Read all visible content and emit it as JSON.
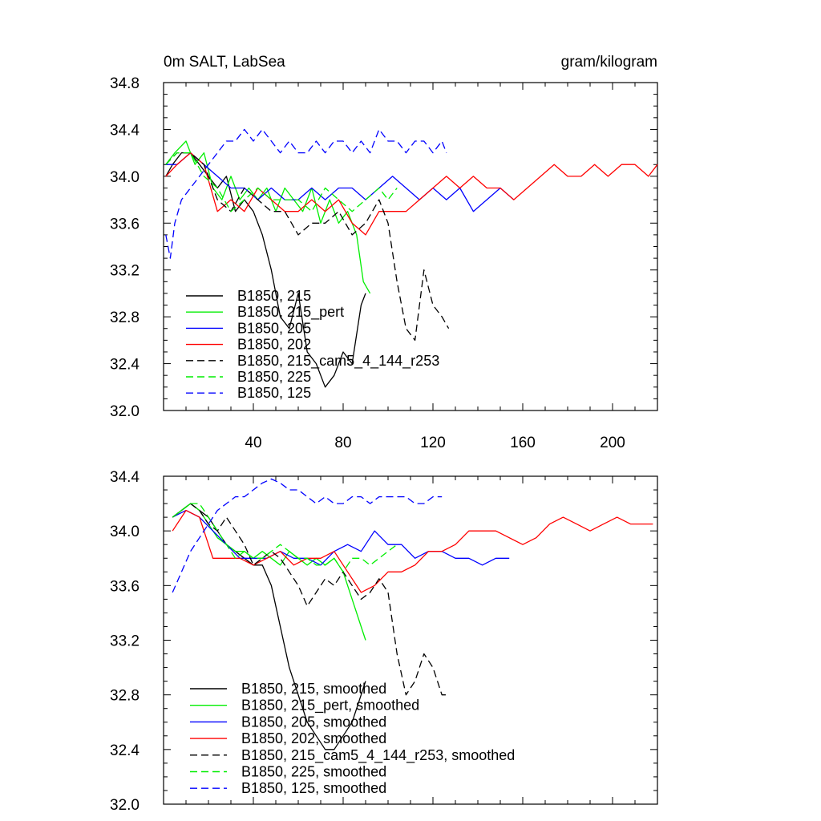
{
  "chart_data": [
    {
      "type": "line",
      "title_left": "0m SALT, LabSea",
      "title_right": "gram/kilogram",
      "xlim": [
        0,
        220
      ],
      "ylim": [
        32.0,
        34.8
      ],
      "yticks": [
        32.0,
        32.4,
        32.8,
        33.2,
        33.6,
        34.0,
        34.4,
        34.8
      ],
      "ytick_labels": [
        "32.0",
        "32.4",
        "32.8",
        "33.2",
        "33.6",
        "34.0",
        "34.4",
        "34.8"
      ],
      "xticks": [
        40,
        80,
        120,
        160,
        200
      ],
      "xtick_labels": [
        "40",
        "80",
        "120",
        "160",
        "200"
      ],
      "legend": [
        "B1850, 215",
        "B1850, 215_pert",
        "B1850, 205",
        "B1850, 202",
        "B1850, 215_cam5_4_144_r253",
        "B1850, 225",
        "B1850, 125"
      ],
      "series": [
        {
          "name": "B1850, 215",
          "color": "#000000",
          "dash": "solid",
          "x": [
            1,
            4,
            8,
            12,
            16,
            20,
            24,
            28,
            32,
            36,
            40,
            44,
            48,
            52,
            56,
            60,
            64,
            68,
            72,
            76,
            80,
            84,
            88,
            90
          ],
          "y": [
            34.0,
            34.1,
            34.2,
            34.2,
            34.1,
            34.0,
            33.9,
            34.0,
            33.7,
            33.8,
            33.7,
            33.5,
            33.2,
            32.8,
            32.7,
            33.0,
            32.5,
            32.4,
            32.2,
            32.3,
            32.5,
            32.4,
            32.9,
            33.0
          ]
        },
        {
          "name": "B1850, 215_pert",
          "color": "#00ee00",
          "dash": "solid",
          "x": [
            1,
            5,
            10,
            14,
            18,
            22,
            26,
            30,
            34,
            38,
            42,
            46,
            50,
            54,
            58,
            62,
            66,
            70,
            74,
            78,
            82,
            86,
            89,
            92
          ],
          "y": [
            34.1,
            34.2,
            34.3,
            34.1,
            34.2,
            33.9,
            33.8,
            34.0,
            33.8,
            33.9,
            33.8,
            33.9,
            33.7,
            33.9,
            33.8,
            33.7,
            33.9,
            33.6,
            33.8,
            33.6,
            33.7,
            33.5,
            33.1,
            33.0
          ]
        },
        {
          "name": "B1850, 205",
          "color": "#0000ff",
          "dash": "solid",
          "x": [
            1,
            6,
            12,
            18,
            24,
            30,
            36,
            42,
            48,
            54,
            60,
            66,
            72,
            78,
            84,
            90,
            96,
            102,
            108,
            114,
            120,
            126,
            132,
            138,
            144,
            150,
            156
          ],
          "y": [
            34.1,
            34.1,
            34.2,
            34.1,
            34.0,
            33.9,
            33.9,
            33.8,
            33.9,
            33.8,
            33.8,
            33.9,
            33.8,
            33.9,
            33.9,
            33.8,
            33.9,
            34.0,
            33.9,
            33.8,
            33.9,
            33.8,
            33.9,
            33.7,
            33.8,
            33.9,
            33.8
          ]
        },
        {
          "name": "B1850, 202",
          "color": "#ff0000",
          "dash": "solid",
          "x": [
            1,
            6,
            12,
            18,
            24,
            30,
            36,
            42,
            48,
            54,
            60,
            66,
            72,
            78,
            84,
            90,
            96,
            102,
            108,
            114,
            120,
            126,
            132,
            138,
            144,
            150,
            156,
            162,
            168,
            174,
            180,
            186,
            192,
            198,
            204,
            210,
            216,
            220
          ],
          "y": [
            34.0,
            34.1,
            34.2,
            34.1,
            33.7,
            33.8,
            33.7,
            33.9,
            33.8,
            33.7,
            33.7,
            33.8,
            33.7,
            33.8,
            33.6,
            33.5,
            33.7,
            33.7,
            33.7,
            33.8,
            33.9,
            34.0,
            33.9,
            34.0,
            33.9,
            33.9,
            33.8,
            33.9,
            34.0,
            34.1,
            34.0,
            34.0,
            34.1,
            34.0,
            34.1,
            34.1,
            34.0,
            34.1
          ]
        },
        {
          "name": "B1850, 215_cam5_4_144_r253",
          "color": "#000000",
          "dash": "dashed",
          "x": [
            1,
            6,
            12,
            18,
            24,
            30,
            36,
            42,
            48,
            54,
            60,
            66,
            72,
            78,
            84,
            90,
            96,
            100,
            104,
            108,
            112,
            116,
            120,
            124,
            127
          ],
          "y": [
            34.1,
            34.2,
            34.2,
            34.1,
            33.8,
            33.7,
            33.9,
            33.8,
            33.7,
            33.7,
            33.5,
            33.6,
            33.6,
            33.7,
            33.5,
            33.6,
            33.8,
            33.6,
            33.1,
            32.7,
            32.6,
            33.2,
            32.9,
            32.8,
            32.7
          ]
        },
        {
          "name": "B1850, 225",
          "color": "#00ee00",
          "dash": "dashed",
          "x": [
            1,
            6,
            12,
            18,
            24,
            30,
            36,
            42,
            48,
            54,
            60,
            66,
            72,
            78,
            84,
            90,
            96,
            100,
            104
          ],
          "y": [
            34.1,
            34.2,
            34.2,
            34.0,
            33.9,
            33.7,
            33.8,
            33.9,
            33.8,
            33.8,
            33.8,
            33.7,
            33.9,
            33.8,
            33.7,
            33.8,
            33.9,
            33.8,
            33.9
          ]
        },
        {
          "name": "B1850, 125",
          "color": "#0000ff",
          "dash": "dashed",
          "x": [
            1,
            3,
            5,
            8,
            12,
            16,
            20,
            24,
            28,
            32,
            36,
            40,
            44,
            48,
            52,
            56,
            60,
            64,
            68,
            72,
            76,
            80,
            84,
            88,
            92,
            96,
            100,
            104,
            108,
            112,
            116,
            120,
            124,
            126
          ],
          "y": [
            33.5,
            33.3,
            33.6,
            33.8,
            33.9,
            34.0,
            34.1,
            34.2,
            34.3,
            34.3,
            34.4,
            34.3,
            34.4,
            34.3,
            34.2,
            34.3,
            34.2,
            34.2,
            34.3,
            34.2,
            34.3,
            34.3,
            34.2,
            34.3,
            34.2,
            34.4,
            34.3,
            34.3,
            34.2,
            34.3,
            34.3,
            34.2,
            34.3,
            34.2
          ]
        }
      ]
    },
    {
      "type": "line",
      "xlim": [
        0,
        220
      ],
      "ylim": [
        32.0,
        34.4
      ],
      "yticks": [
        32.0,
        32.4,
        32.8,
        33.2,
        33.6,
        34.0,
        34.4
      ],
      "ytick_labels": [
        "32.0",
        "32.4",
        "32.8",
        "33.2",
        "33.6",
        "34.0",
        "34.4"
      ],
      "xticks": [
        40,
        80,
        120,
        160,
        200
      ],
      "legend": [
        "B1850, 215, smoothed",
        "B1850, 215_pert, smoothed",
        "B1850, 205, smoothed",
        "B1850, 202, smoothed",
        "B1850, 215_cam5_4_144_r253, smoothed",
        "B1850, 225, smoothed",
        "B1850, 125, smoothed"
      ],
      "series": [
        {
          "name": "B1850, 215, smoothed",
          "color": "#000000",
          "dash": "solid",
          "x": [
            4,
            8,
            12,
            16,
            20,
            24,
            28,
            32,
            36,
            40,
            44,
            48,
            52,
            56,
            60,
            64,
            68,
            72,
            76,
            80,
            84,
            88,
            90
          ],
          "y": [
            34.1,
            34.15,
            34.2,
            34.15,
            34.1,
            34.0,
            33.9,
            33.85,
            33.8,
            33.75,
            33.75,
            33.6,
            33.3,
            33.0,
            32.8,
            32.6,
            32.5,
            32.4,
            32.4,
            32.5,
            32.6,
            32.8,
            32.9
          ]
        },
        {
          "name": "B1850, 215_pert, smoothed",
          "color": "#00ee00",
          "dash": "solid",
          "x": [
            4,
            8,
            12,
            16,
            20,
            24,
            28,
            32,
            36,
            40,
            44,
            48,
            52,
            56,
            60,
            64,
            68,
            72,
            76,
            80,
            84,
            88,
            90
          ],
          "y": [
            34.1,
            34.15,
            34.2,
            34.15,
            34.05,
            33.95,
            33.9,
            33.85,
            33.85,
            33.8,
            33.85,
            33.8,
            33.75,
            33.85,
            33.8,
            33.75,
            33.8,
            33.75,
            33.8,
            33.7,
            33.5,
            33.3,
            33.2
          ]
        },
        {
          "name": "B1850, 205, smoothed",
          "color": "#0000ff",
          "dash": "solid",
          "x": [
            4,
            10,
            16,
            22,
            28,
            34,
            40,
            46,
            52,
            58,
            64,
            70,
            76,
            82,
            88,
            94,
            100,
            106,
            112,
            118,
            124,
            130,
            136,
            142,
            148,
            154
          ],
          "y": [
            34.1,
            34.15,
            34.1,
            34.0,
            33.9,
            33.8,
            33.8,
            33.8,
            33.85,
            33.8,
            33.8,
            33.75,
            33.85,
            33.9,
            33.85,
            34.0,
            33.9,
            33.9,
            33.8,
            33.85,
            33.85,
            33.8,
            33.8,
            33.75,
            33.8,
            33.8
          ]
        },
        {
          "name": "B1850, 202, smoothed",
          "color": "#ff0000",
          "dash": "solid",
          "x": [
            4,
            10,
            16,
            22,
            28,
            34,
            40,
            46,
            52,
            58,
            64,
            70,
            76,
            82,
            88,
            94,
            100,
            106,
            112,
            118,
            124,
            130,
            136,
            142,
            148,
            154,
            160,
            166,
            172,
            178,
            184,
            190,
            196,
            202,
            208,
            214,
            218
          ],
          "y": [
            34.0,
            34.15,
            34.1,
            33.8,
            33.8,
            33.8,
            33.75,
            33.8,
            33.85,
            33.75,
            33.8,
            33.8,
            33.85,
            33.7,
            33.55,
            33.6,
            33.7,
            33.7,
            33.75,
            33.85,
            33.85,
            33.9,
            34.0,
            34.0,
            34.0,
            33.95,
            33.9,
            33.95,
            34.05,
            34.1,
            34.05,
            34.0,
            34.05,
            34.1,
            34.05,
            34.05,
            34.05
          ]
        },
        {
          "name": "B1850, 215_cam5_4_144_r253, smoothed",
          "color": "#000000",
          "dash": "dashed",
          "x": [
            4,
            8,
            12,
            16,
            20,
            24,
            28,
            32,
            36,
            40,
            44,
            48,
            52,
            56,
            60,
            64,
            68,
            72,
            76,
            80,
            84,
            88,
            92,
            96,
            100,
            104,
            108,
            112,
            116,
            120,
            124,
            126
          ],
          "y": [
            34.1,
            34.15,
            34.2,
            34.15,
            34.05,
            34.0,
            34.1,
            34.0,
            33.9,
            33.75,
            33.8,
            33.85,
            33.8,
            33.7,
            33.6,
            33.45,
            33.55,
            33.65,
            33.6,
            33.7,
            33.6,
            33.5,
            33.55,
            33.65,
            33.55,
            33.1,
            32.8,
            32.9,
            33.1,
            33.0,
            32.8,
            32.8
          ]
        },
        {
          "name": "B1850, 225, smoothed",
          "color": "#00ee00",
          "dash": "dashed",
          "x": [
            4,
            8,
            12,
            16,
            20,
            24,
            28,
            32,
            36,
            40,
            44,
            48,
            52,
            56,
            60,
            64,
            68,
            72,
            76,
            80,
            84,
            88,
            92,
            96,
            100,
            104
          ],
          "y": [
            34.1,
            34.15,
            34.2,
            34.2,
            34.1,
            34.0,
            33.9,
            33.8,
            33.85,
            33.8,
            33.8,
            33.85,
            33.9,
            33.85,
            33.8,
            33.8,
            33.75,
            33.75,
            33.8,
            33.7,
            33.8,
            33.8,
            33.75,
            33.8,
            33.85,
            33.9
          ]
        },
        {
          "name": "B1850, 125, smoothed",
          "color": "#0000ff",
          "dash": "dashed",
          "x": [
            4,
            8,
            12,
            16,
            20,
            24,
            28,
            32,
            36,
            40,
            44,
            48,
            52,
            56,
            60,
            64,
            68,
            72,
            76,
            80,
            84,
            88,
            92,
            96,
            100,
            104,
            108,
            112,
            116,
            120,
            124
          ],
          "y": [
            33.55,
            33.7,
            33.85,
            33.95,
            34.05,
            34.15,
            34.2,
            34.25,
            34.25,
            34.3,
            34.35,
            34.38,
            34.35,
            34.3,
            34.3,
            34.25,
            34.2,
            34.25,
            34.2,
            34.2,
            34.25,
            34.25,
            34.2,
            34.25,
            34.25,
            34.25,
            34.25,
            34.2,
            34.2,
            34.25,
            34.25
          ]
        }
      ]
    }
  ]
}
